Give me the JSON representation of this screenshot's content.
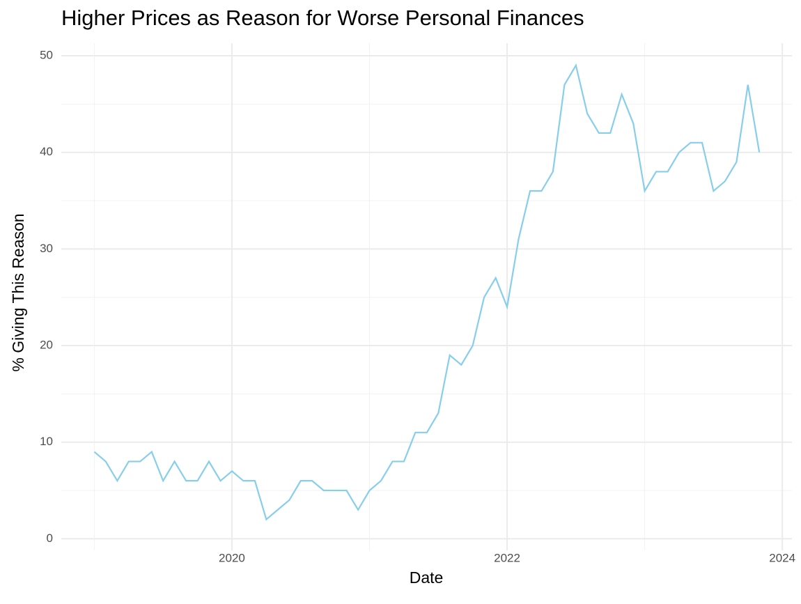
{
  "chart_data": {
    "type": "line",
    "title": "Higher Prices as Reason for Worse Personal Finances",
    "x_label": "Date",
    "y_label": "% Giving This Reason",
    "x": [
      2019.0,
      2019.083,
      2019.167,
      2019.25,
      2019.333,
      2019.417,
      2019.5,
      2019.583,
      2019.667,
      2019.75,
      2019.833,
      2019.917,
      2020.0,
      2020.083,
      2020.167,
      2020.25,
      2020.333,
      2020.417,
      2020.5,
      2020.583,
      2020.667,
      2020.75,
      2020.833,
      2020.917,
      2021.0,
      2021.083,
      2021.167,
      2021.25,
      2021.333,
      2021.417,
      2021.5,
      2021.583,
      2021.667,
      2021.75,
      2021.833,
      2021.917,
      2022.0,
      2022.083,
      2022.167,
      2022.25,
      2022.333,
      2022.417,
      2022.5,
      2022.583,
      2022.667,
      2022.75,
      2022.833,
      2022.917,
      2023.0,
      2023.083,
      2023.167,
      2023.25,
      2023.333,
      2023.417,
      2023.5,
      2023.583,
      2023.667,
      2023.75,
      2023.833
    ],
    "series": [
      {
        "color": "#87ceeb",
        "values": [
          9,
          8,
          6,
          8,
          8,
          9,
          6,
          8,
          6,
          6,
          8,
          6,
          7,
          6,
          6,
          2,
          3,
          4,
          6,
          6,
          5,
          5,
          5,
          3,
          5,
          6,
          8,
          8,
          11,
          11,
          13,
          19,
          18,
          20,
          25,
          27,
          24,
          31,
          36,
          36,
          38,
          47,
          49,
          44,
          42,
          42,
          46,
          43,
          36,
          38,
          38,
          40,
          41,
          41,
          36,
          37,
          39,
          47,
          40
        ]
      }
    ],
    "xlim": [
      2018.76,
      2024.07
    ],
    "ylim": [
      -1.2,
      51.3
    ],
    "xticks": [
      2020,
      2022,
      2024
    ],
    "yticks": [
      0,
      10,
      20,
      30,
      40,
      50
    ],
    "grid": true
  }
}
